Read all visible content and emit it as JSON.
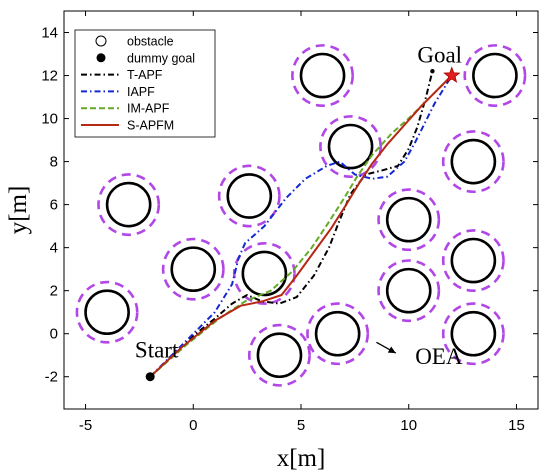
{
  "chart_data": {
    "type": "line",
    "xlabel": "x[m]",
    "ylabel": "y[m]",
    "xlim": [
      -6,
      16
    ],
    "ylim": [
      -3.5,
      15
    ],
    "xticks": [
      -5,
      0,
      5,
      10,
      15
    ],
    "yticks": [
      -2,
      0,
      2,
      4,
      6,
      8,
      10,
      12,
      14
    ],
    "grid": false,
    "legend_position": "top-left",
    "legend": {
      "obstacle": "obstacle",
      "dummy_goal": "dummy goal"
    },
    "obstacles": [
      {
        "x": -4,
        "y": 1
      },
      {
        "x": 0,
        "y": 3
      },
      {
        "x": -3,
        "y": 6
      },
      {
        "x": 2.6,
        "y": 6.4
      },
      {
        "x": 3.3,
        "y": 2.8
      },
      {
        "x": 4,
        "y": -1
      },
      {
        "x": 6,
        "y": 12
      },
      {
        "x": 7.3,
        "y": 8.7
      },
      {
        "x": 6.7,
        "y": 0
      },
      {
        "x": 10,
        "y": 5.3
      },
      {
        "x": 10,
        "y": 2
      },
      {
        "x": 13,
        "y": 8
      },
      {
        "x": 13,
        "y": 3.4
      },
      {
        "x": 13,
        "y": 0
      },
      {
        "x": 14,
        "y": 12
      }
    ],
    "start": {
      "x": -2,
      "y": -2
    },
    "goal": {
      "x": 12,
      "y": 12
    },
    "dummy_goal": {
      "x": 11.1,
      "y": 12.2
    },
    "series": [
      {
        "name": "T-APF",
        "color": "#000000",
        "dash": "dashdot",
        "points": [
          [
            -2,
            -2
          ],
          [
            0,
            -0.1
          ],
          [
            1,
            0.7
          ],
          [
            1.8,
            1.4
          ],
          [
            2.5,
            1.8
          ],
          [
            3.2,
            1.5
          ],
          [
            4,
            1.4
          ],
          [
            4.8,
            1.7
          ],
          [
            5.6,
            2.7
          ],
          [
            6.3,
            4
          ],
          [
            6.8,
            5.3
          ],
          [
            7.3,
            6.5
          ],
          [
            8,
            7.4
          ],
          [
            8.8,
            7.6
          ],
          [
            9.5,
            7.8
          ],
          [
            10,
            8.6
          ],
          [
            10.4,
            9.6
          ],
          [
            10.8,
            11
          ],
          [
            11.1,
            12.2
          ]
        ]
      },
      {
        "name": "IAPF",
        "color": "#1428d2",
        "dash": "dashdot",
        "points": [
          [
            -2,
            -2
          ],
          [
            -0.5,
            -0.5
          ],
          [
            1,
            1
          ],
          [
            1.8,
            2.3
          ],
          [
            2.1,
            3.5
          ],
          [
            2.4,
            4.2
          ],
          [
            3.3,
            5
          ],
          [
            4.3,
            6.3
          ],
          [
            5.2,
            7.2
          ],
          [
            6.2,
            7.8
          ],
          [
            6.8,
            8
          ],
          [
            7.5,
            7.4
          ],
          [
            8.3,
            7.2
          ],
          [
            9,
            7.3
          ],
          [
            9.8,
            8
          ],
          [
            10.3,
            8.9
          ],
          [
            10.8,
            9.9
          ],
          [
            11.2,
            10.7
          ],
          [
            12,
            12
          ]
        ]
      },
      {
        "name": "IM-APF",
        "color": "#64aa28",
        "dash": "dash",
        "points": [
          [
            -2,
            -2
          ],
          [
            -0.3,
            -0.5
          ],
          [
            1.2,
            0.7
          ],
          [
            2.4,
            1.5
          ],
          [
            3.6,
            2
          ],
          [
            4.6,
            2.9
          ],
          [
            5.5,
            4
          ],
          [
            6.3,
            5.2
          ],
          [
            7,
            6.3
          ],
          [
            7.6,
            7.3
          ],
          [
            8.3,
            8.3
          ],
          [
            9.2,
            9.3
          ],
          [
            10.1,
            10.1
          ],
          [
            11,
            11
          ],
          [
            12,
            12
          ]
        ]
      },
      {
        "name": "S-APFM",
        "color": "#b42814",
        "dash": "solid",
        "points": [
          [
            -2,
            -2
          ],
          [
            -0.5,
            -0.6
          ],
          [
            1,
            0.6
          ],
          [
            2.2,
            1.3
          ],
          [
            3.2,
            1.5
          ],
          [
            4.1,
            1.8
          ],
          [
            4.8,
            2.7
          ],
          [
            5.6,
            3.8
          ],
          [
            6.4,
            4.9
          ],
          [
            7.1,
            6
          ],
          [
            7.7,
            7
          ],
          [
            8.3,
            7.9
          ],
          [
            9,
            8.8
          ],
          [
            9.8,
            9.7
          ],
          [
            10.6,
            10.6
          ],
          [
            11.3,
            11.3
          ],
          [
            12,
            12
          ]
        ]
      }
    ],
    "annotations": [
      {
        "text": "Goal",
        "x": 10.4,
        "y": 12.6
      },
      {
        "text": "Start",
        "x": -1.7,
        "y": -1.1
      },
      {
        "text": "OEA",
        "x": 10.3,
        "y": -1.4
      }
    ],
    "arrow": {
      "from": [
        8.5,
        -0.4
      ],
      "to": [
        9.4,
        -0.9
      ]
    }
  }
}
